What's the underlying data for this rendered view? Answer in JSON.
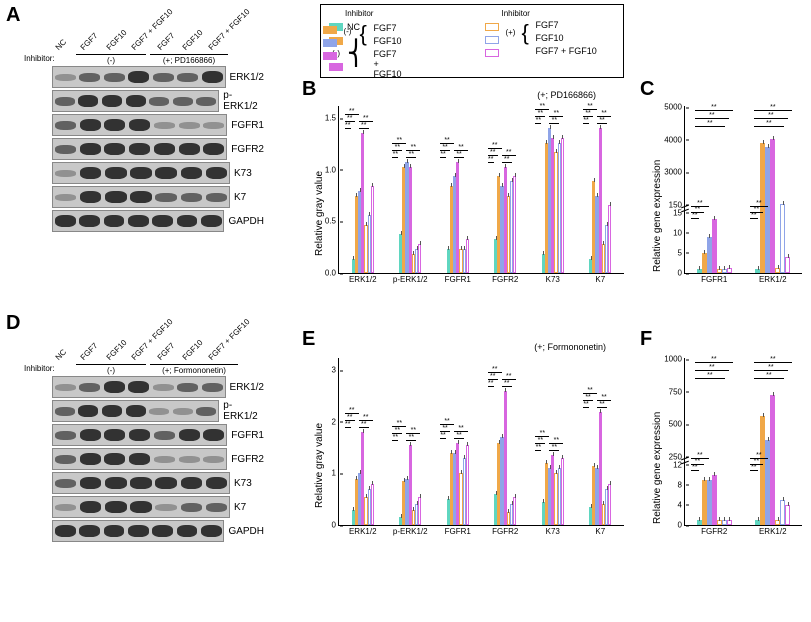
{
  "panel_labels": {
    "A": "A",
    "B": "B",
    "C": "C",
    "D": "D",
    "E": "E",
    "F": "F"
  },
  "legend": {
    "title_left": "Inhibitor",
    "title_right": "Inhibitor",
    "nc": "NC",
    "minus": "(-)",
    "plus": "(+)",
    "fgf7": "FGF7",
    "fgf10": "FGF10",
    "both": "FGF7 + FGF10",
    "colors": {
      "nc": {
        "fill": "#5fd6c0",
        "border": "#5fd6c0"
      },
      "m_fgf7": {
        "fill": "#f0a848",
        "border": "#f0a848"
      },
      "m_fgf10": {
        "fill": "#8fa4e8",
        "border": "#8fa4e8"
      },
      "m_both": {
        "fill": "#d866e0",
        "border": "#d866e0"
      },
      "p_fgf7": {
        "fill": "#ffffff",
        "border": "#f0a848"
      },
      "p_fgf10": {
        "fill": "#ffffff",
        "border": "#8fa4e8"
      },
      "p_both": {
        "fill": "#ffffff",
        "border": "#d866e0"
      }
    }
  },
  "blot": {
    "lanes": [
      "NC",
      "FGF7",
      "FGF10",
      "FGF7 + FGF10",
      "FGF7",
      "FGF10",
      "FGF7 + FGF10"
    ],
    "inhibitor_label": "Inhibitor:",
    "minus": "(-)",
    "plus_A": "(+; PD166866)",
    "plus_D": "(+; Formononetin)",
    "proteins": [
      "ERK1/2",
      "p-ERK1/2",
      "FGFR1",
      "FGFR2",
      "K73",
      "K7",
      "GAPDH"
    ],
    "bands_A": {
      "ERK1/2": [
        "light",
        "med",
        "med",
        "heavy",
        "med",
        "med",
        "heavy"
      ],
      "p-ERK1/2": [
        "med",
        "heavy",
        "heavy",
        "heavy",
        "med",
        "med",
        "med"
      ],
      "FGFR1": [
        "med",
        "heavy",
        "heavy",
        "heavy",
        "light",
        "light",
        "light"
      ],
      "FGFR2": [
        "med",
        "heavy",
        "heavy",
        "heavy",
        "heavy",
        "heavy",
        "heavy"
      ],
      "K73": [
        "light",
        "heavy",
        "heavy",
        "heavy",
        "heavy",
        "heavy",
        "heavy"
      ],
      "K7": [
        "light",
        "heavy",
        "heavy",
        "heavy",
        "med",
        "med",
        "med"
      ],
      "GAPDH": [
        "heavy",
        "heavy",
        "heavy",
        "heavy",
        "heavy",
        "heavy",
        "heavy"
      ]
    },
    "bands_D": {
      "ERK1/2": [
        "light",
        "med",
        "heavy",
        "heavy",
        "light",
        "med",
        "med"
      ],
      "p-ERK1/2": [
        "med",
        "heavy",
        "heavy",
        "heavy",
        "light",
        "light",
        "med"
      ],
      "FGFR1": [
        "med",
        "heavy",
        "heavy",
        "heavy",
        "med",
        "heavy",
        "heavy"
      ],
      "FGFR2": [
        "med",
        "heavy",
        "heavy",
        "heavy",
        "light",
        "light",
        "light"
      ],
      "K73": [
        "med",
        "heavy",
        "heavy",
        "heavy",
        "heavy",
        "heavy",
        "heavy"
      ],
      "K7": [
        "light",
        "heavy",
        "heavy",
        "heavy",
        "light",
        "med",
        "med"
      ],
      "GAPDH": [
        "heavy",
        "heavy",
        "heavy",
        "heavy",
        "heavy",
        "heavy",
        "heavy"
      ]
    }
  },
  "chartB": {
    "note": "(+; PD166866)",
    "ylabel": "Relative gray value",
    "groups": [
      "ERK1/2",
      "p-ERK1/2",
      "FGFR1",
      "FGFR2",
      "K73",
      "K7"
    ],
    "ymax": 1.6,
    "yticks": [
      "0.0",
      "0.5",
      "1.0",
      "1.5"
    ],
    "values": {
      "ERK1/2": [
        0.15,
        0.8,
        0.85,
        1.45,
        0.5,
        0.6,
        0.9
      ],
      "p-ERK1/2": [
        0.4,
        1.1,
        1.15,
        1.1,
        0.2,
        0.25,
        0.3
      ],
      "FGFR1": [
        0.25,
        0.9,
        1.0,
        1.15,
        0.25,
        0.25,
        0.35
      ],
      "FGFR2": [
        0.35,
        1.0,
        0.9,
        1.1,
        0.8,
        0.95,
        1.0
      ],
      "K73": [
        0.2,
        1.35,
        1.5,
        1.4,
        1.25,
        1.35,
        1.4
      ],
      "K7": [
        0.15,
        0.95,
        0.8,
        1.5,
        0.3,
        0.5,
        0.7
      ]
    }
  },
  "chartE": {
    "note": "(+; Formononetin)",
    "ylabel": "Relative gray value",
    "groups": [
      "ERK1/2",
      "p-ERK1/2",
      "FGFR1",
      "FGFR2",
      "K73",
      "K7"
    ],
    "ymax": 3.0,
    "yticks": [
      "0",
      "1",
      "2",
      "3"
    ],
    "values": {
      "ERK1/2": [
        0.3,
        0.9,
        1.0,
        1.8,
        0.55,
        0.7,
        0.8
      ],
      "p-ERK1/2": [
        0.15,
        0.85,
        0.9,
        1.55,
        0.3,
        0.4,
        0.55
      ],
      "FGFR1": [
        0.5,
        1.4,
        1.4,
        1.6,
        1.0,
        1.3,
        1.55
      ],
      "FGFR2": [
        0.6,
        1.6,
        1.7,
        2.6,
        0.25,
        0.4,
        0.55
      ],
      "K73": [
        0.45,
        1.2,
        1.1,
        1.35,
        1.0,
        1.1,
        1.3
      ],
      "K7": [
        0.35,
        1.15,
        1.1,
        2.2,
        0.4,
        0.7,
        0.8
      ]
    }
  },
  "chartC": {
    "ylabel": "Relative gene expression",
    "groups": [
      "FGFR1",
      "ERK1/2"
    ],
    "yticks_low": [
      "0",
      "5",
      "10",
      "15"
    ],
    "yticks_high": [
      "150",
      "3000",
      "4000",
      "5000"
    ],
    "break_at": 0.36,
    "ymax_low": 15,
    "ymax_high": 5000,
    "values_low": {
      "FGFR1": [
        1,
        5,
        9,
        13.5,
        1.1,
        1.1,
        1.2
      ],
      "ERK1/2": [
        1,
        13,
        12,
        14,
        1.2,
        7,
        4
      ]
    },
    "values_high": {
      "FGFR1": [
        null,
        null,
        null,
        null,
        null,
        null,
        null
      ],
      "ERK1/2": [
        null,
        3200,
        3000,
        3400,
        null,
        160,
        null
      ]
    }
  },
  "chartF": {
    "ylabel": "Relative gene expression",
    "groups": [
      "FGFR2",
      "ERK1/2"
    ],
    "yticks_low": [
      "0",
      "4",
      "8",
      "12"
    ],
    "yticks_high": [
      "250",
      "500",
      "750",
      "1000"
    ],
    "break_at": 0.36,
    "ymax_low": 12,
    "ymax_high": 1000,
    "values_low": {
      "FGFR2": [
        1,
        9,
        9,
        10,
        1,
        1,
        1
      ],
      "ERK1/2": [
        1,
        4,
        4,
        9,
        1,
        5,
        4
      ]
    },
    "values_high": {
      "FGFR2": [
        null,
        null,
        null,
        null,
        null,
        null,
        null
      ],
      "ERK1/2": [
        null,
        560,
        380,
        720,
        null,
        null,
        null
      ]
    }
  },
  "sig_labels": {
    "ss": "**",
    "s": "*"
  }
}
